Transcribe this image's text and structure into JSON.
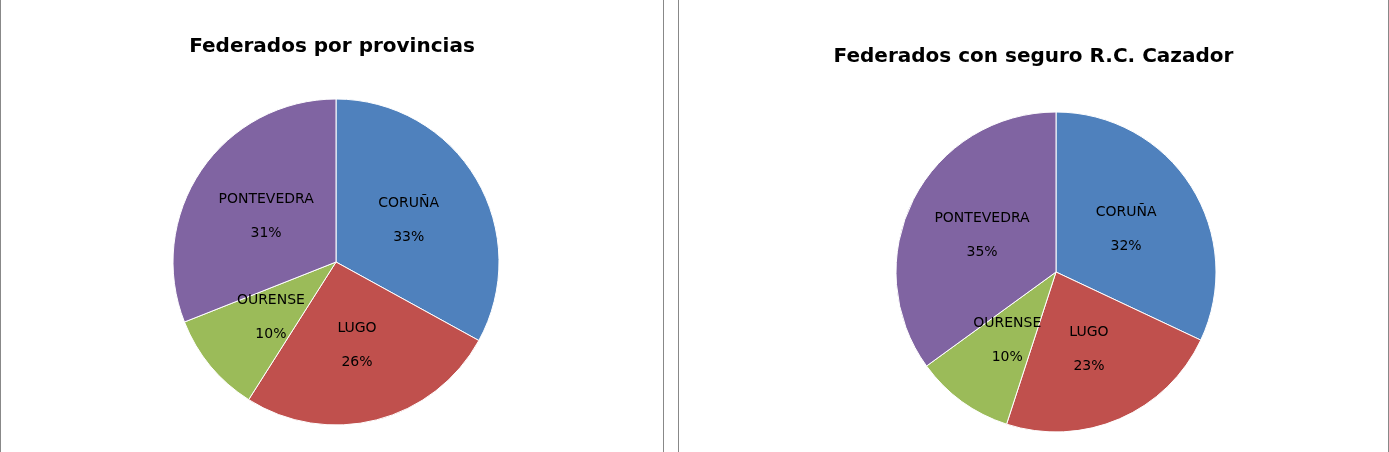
{
  "chart_data": [
    {
      "type": "pie",
      "title": "Federados por provincias",
      "categories": [
        "CORUÑA",
        "LUGO",
        "OURENSE",
        "PONTEVEDRA"
      ],
      "values": [
        33,
        26,
        10,
        31
      ],
      "value_labels": [
        "33%",
        "26%",
        "10%",
        "31%"
      ],
      "colors": [
        "#4f81bd",
        "#c0504d",
        "#9bbb59",
        "#8064a2"
      ],
      "legend": false
    },
    {
      "type": "pie",
      "title": "Federados con seguro R.C. Cazador",
      "categories": [
        "CORUÑA",
        "LUGO",
        "OURENSE",
        "PONTEVEDRA"
      ],
      "values": [
        32,
        23,
        10,
        35
      ],
      "value_labels": [
        "32%",
        "23%",
        "10%",
        "35%"
      ],
      "colors": [
        "#4f81bd",
        "#c0504d",
        "#9bbb59",
        "#8064a2"
      ],
      "legend": false
    }
  ]
}
